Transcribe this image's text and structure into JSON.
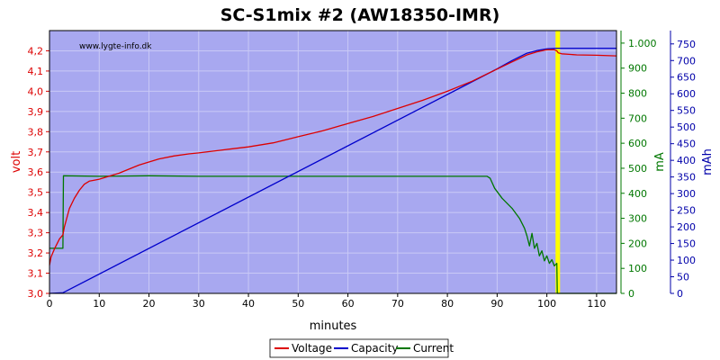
{
  "chart_data": {
    "type": "line",
    "title": "SC-S1mix #2 (AW18350-IMR)",
    "watermark": "www.lygte-info.dk",
    "xlabel": "minutes",
    "xlim": [
      0,
      114
    ],
    "x_ticks": [
      "0",
      "10",
      "20",
      "30",
      "40",
      "50",
      "60",
      "70",
      "80",
      "90",
      "100",
      "110"
    ],
    "axes": {
      "volt": {
        "label": "volt",
        "color": "#dd0000",
        "lim": [
          3.0,
          4.3
        ],
        "ticks": [
          "3,0",
          "3,1",
          "3,2",
          "3,3",
          "3,4",
          "3,5",
          "3,6",
          "3,7",
          "3,8",
          "3,9",
          "4,0",
          "4,1",
          "4,2"
        ]
      },
      "mA": {
        "label": "mA",
        "color": "#007700",
        "lim": [
          0,
          1050
        ],
        "ticks": [
          "0",
          "100",
          "200",
          "300",
          "400",
          "500",
          "600",
          "700",
          "800",
          "900",
          "1.000"
        ]
      },
      "mAh": {
        "label": "mAh",
        "color": "#0000aa",
        "lim": [
          0,
          790
        ],
        "ticks": [
          "0",
          "50",
          "100",
          "150",
          "200",
          "250",
          "300",
          "350",
          "400",
          "450",
          "500",
          "550",
          "600",
          "650",
          "700",
          "750"
        ]
      }
    },
    "marker": {
      "x": 102.2,
      "color": "#ffff00"
    },
    "grid": true,
    "background": "#a8a8f0",
    "legend": {
      "placement": "bottom-center"
    },
    "series": [
      {
        "name": "Voltage",
        "axis": "volt",
        "color": "#dd0000",
        "points": [
          [
            0,
            3.14
          ],
          [
            0.3,
            3.18
          ],
          [
            1,
            3.22
          ],
          [
            2,
            3.27
          ],
          [
            2.7,
            3.29
          ],
          [
            3,
            3.33
          ],
          [
            4,
            3.42
          ],
          [
            5,
            3.47
          ],
          [
            6,
            3.51
          ],
          [
            7,
            3.54
          ],
          [
            8,
            3.555
          ],
          [
            9,
            3.56
          ],
          [
            10,
            3.565
          ],
          [
            12,
            3.58
          ],
          [
            14,
            3.595
          ],
          [
            16,
            3.615
          ],
          [
            18,
            3.635
          ],
          [
            20,
            3.65
          ],
          [
            22,
            3.665
          ],
          [
            25,
            3.68
          ],
          [
            28,
            3.69
          ],
          [
            30,
            3.695
          ],
          [
            35,
            3.71
          ],
          [
            40,
            3.725
          ],
          [
            45,
            3.745
          ],
          [
            50,
            3.775
          ],
          [
            55,
            3.805
          ],
          [
            60,
            3.84
          ],
          [
            65,
            3.875
          ],
          [
            70,
            3.915
          ],
          [
            75,
            3.955
          ],
          [
            80,
            4.0
          ],
          [
            85,
            4.05
          ],
          [
            90,
            4.11
          ],
          [
            93,
            4.145
          ],
          [
            96,
            4.18
          ],
          [
            98,
            4.195
          ],
          [
            100,
            4.205
          ],
          [
            101.5,
            4.205
          ],
          [
            102,
            4.2
          ],
          [
            102.3,
            4.19
          ],
          [
            103,
            4.185
          ],
          [
            106,
            4.18
          ],
          [
            110,
            4.178
          ],
          [
            114,
            4.175
          ]
        ]
      },
      {
        "name": "Capacity",
        "axis": "mAh",
        "color": "#0000cc",
        "points": [
          [
            0,
            0
          ],
          [
            2.7,
            2
          ],
          [
            90,
            675
          ],
          [
            93,
            700
          ],
          [
            96,
            722
          ],
          [
            98,
            730
          ],
          [
            100,
            735
          ],
          [
            102,
            737
          ],
          [
            102.3,
            737
          ],
          [
            114,
            737
          ]
        ]
      },
      {
        "name": "Current",
        "axis": "mA",
        "color": "#007700",
        "points": [
          [
            0,
            180
          ],
          [
            2.7,
            180
          ],
          [
            2.8,
            470
          ],
          [
            10,
            468
          ],
          [
            20,
            470
          ],
          [
            30,
            468
          ],
          [
            40,
            468
          ],
          [
            50,
            468
          ],
          [
            60,
            468
          ],
          [
            70,
            468
          ],
          [
            80,
            468
          ],
          [
            88,
            468
          ],
          [
            88.6,
            460
          ],
          [
            89.5,
            420
          ],
          [
            91,
            380
          ],
          [
            93,
            340
          ],
          [
            94.5,
            300
          ],
          [
            95.5,
            260
          ],
          [
            96,
            230
          ],
          [
            96.5,
            190
          ],
          [
            97,
            240
          ],
          [
            97.5,
            180
          ],
          [
            98,
            200
          ],
          [
            98.5,
            150
          ],
          [
            99,
            170
          ],
          [
            99.5,
            130
          ],
          [
            100,
            150
          ],
          [
            100.5,
            120
          ],
          [
            101,
            135
          ],
          [
            101.5,
            110
          ],
          [
            102,
            120
          ],
          [
            102.1,
            0
          ],
          [
            114,
            0
          ]
        ]
      }
    ]
  }
}
